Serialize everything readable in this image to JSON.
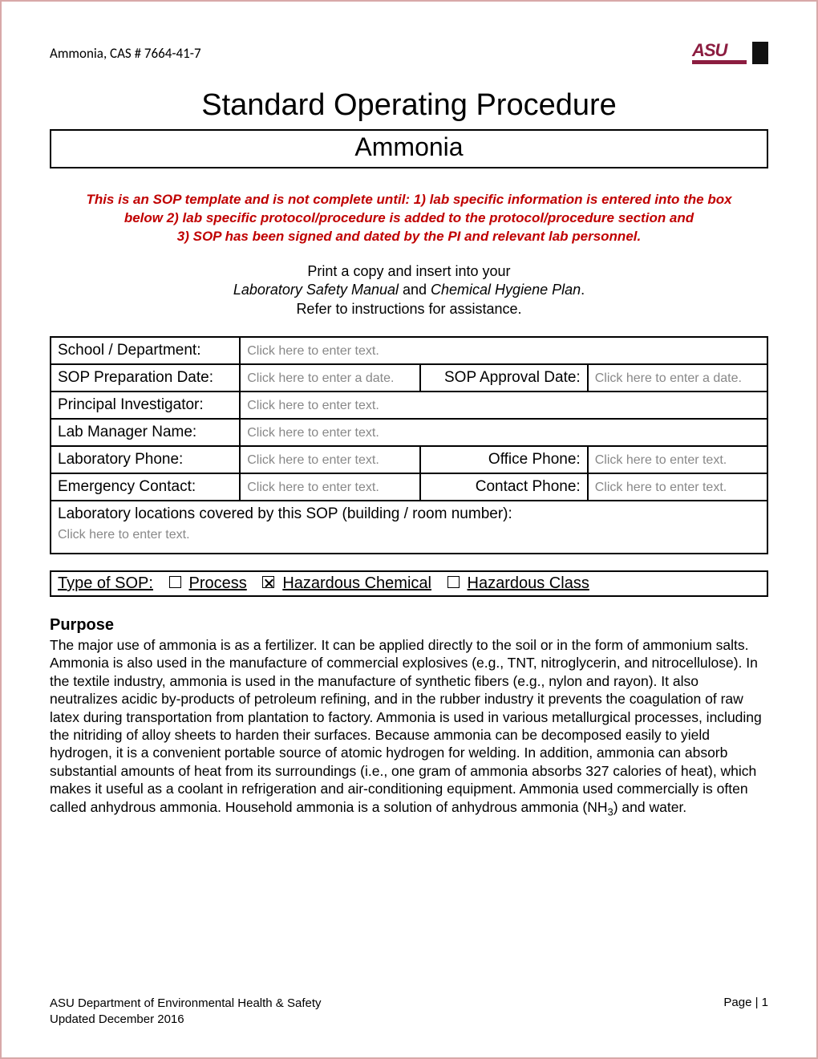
{
  "header": {
    "cas": "Ammonia, CAS # 7664-41-7",
    "logo_text": "ASU"
  },
  "title": "Standard Operating Procedure",
  "subtitle": "Ammonia",
  "red_note_line1": "This is an SOP template and is not complete until: 1) lab specific information is entered into the box",
  "red_note_line2": "below 2) lab specific protocol/procedure is added to the protocol/procedure section and",
  "red_note_line3": "3) SOP has been signed and dated by the PI and relevant lab personnel.",
  "instructions": {
    "line1": "Print a copy and insert into your",
    "line2a": "Laboratory Safety Manual",
    "line2b": " and ",
    "line2c": "Chemical Hygiene Plan",
    "line2d": ".",
    "line3": "Refer to instructions for assistance."
  },
  "form": {
    "school_label": "School / Department:",
    "school_placeholder": "Click here to enter text.",
    "prep_label": "SOP Preparation Date:",
    "prep_placeholder": "Click here to enter a date.",
    "approval_label": "SOP Approval Date:",
    "approval_placeholder": "Click here to enter a date.",
    "pi_label": "Principal Investigator:",
    "pi_placeholder": "Click here to enter text.",
    "labmgr_label": "Lab Manager Name:",
    "labmgr_placeholder": "Click here to enter text.",
    "labphone_label": "Laboratory Phone:",
    "labphone_placeholder": "Click here to enter text.",
    "officephone_label": "Office Phone:",
    "officephone_placeholder": "Click here to enter text.",
    "emergency_label": "Emergency Contact:",
    "emergency_placeholder": "Click here to enter text.",
    "contactphone_label": "Contact Phone:",
    "contactphone_placeholder": "Click here to enter text.",
    "locations_label": "Laboratory locations covered by this SOP (building / room number):",
    "locations_placeholder": "Click here to enter text."
  },
  "sop_type": {
    "label": "Type of SOP:",
    "process": {
      "label": "Process",
      "checked": false
    },
    "hazchem": {
      "label": "Hazardous Chemical",
      "checked": true
    },
    "hazclass": {
      "label": "Hazardous Class",
      "checked": false
    }
  },
  "purpose": {
    "heading": "Purpose",
    "body_pre": "The major use of ammonia is as a fertilizer. It can be applied directly to the soil or in the form of ammonium salts. Ammonia is also used in the manufacture of commercial explosives (e.g., TNT, nitroglycerin, and nitrocellulose). In the textile industry, ammonia is used in the manufacture of synthetic fibers (e.g., nylon and rayon). It also neutralizes acidic by-products of petroleum refining, and in the rubber industry it prevents the coagulation of raw latex during transportation from plantation to factory. Ammonia is used in various metallurgical processes, including the nitriding of alloy sheets to harden their surfaces. Because ammonia can be decomposed easily to yield hydrogen, it is a convenient portable source of atomic hydrogen for welding. In addition, ammonia can absorb substantial amounts of heat from its surroundings (i.e., one gram of ammonia absorbs 327 calories of heat), which makes it useful as a coolant in refrigeration and air-conditioning equipment. Ammonia used commercially is often called anhydrous ammonia. Household ammonia is a solution of anhydrous ammonia (NH",
    "body_sub": "3",
    "body_post": ") and water."
  },
  "footer": {
    "org": "ASU Department of Environmental Health & Safety",
    "updated": "Updated December 2016",
    "page": "Page | 1"
  },
  "colors": {
    "border": "#d8a8a8",
    "red_text": "#c00000",
    "placeholder": "#888888",
    "logo_maroon": "#8c1d40"
  }
}
